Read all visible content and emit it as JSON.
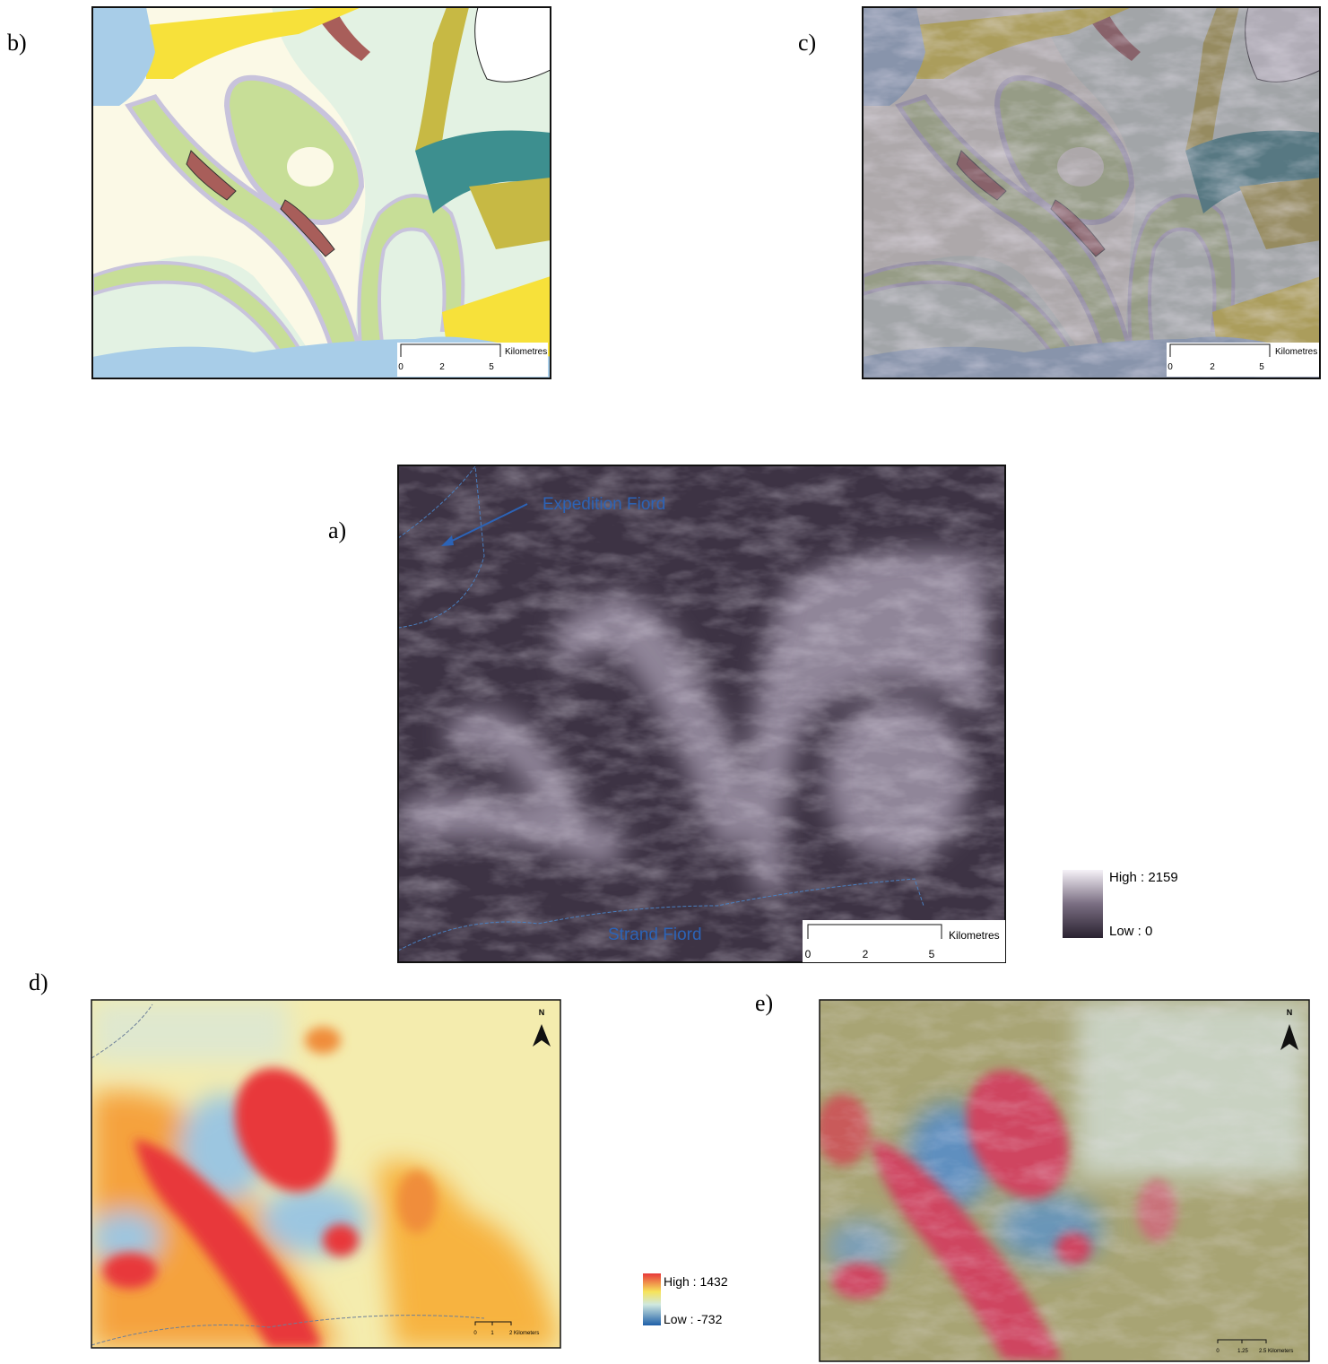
{
  "panels": {
    "b": {
      "label": "b)",
      "scale": {
        "ticks": [
          "0",
          "2",
          "5"
        ],
        "unit": "Kilometres"
      }
    },
    "c": {
      "label": "c)",
      "scale": {
        "ticks": [
          "0",
          "2",
          "5"
        ],
        "unit": "Kilometres"
      }
    },
    "a": {
      "label": "a)",
      "annotations": [
        "Expedition Fiord",
        "Strand Fiord"
      ],
      "scale": {
        "ticks": [
          "0",
          "2",
          "5"
        ],
        "unit": "Kilometres"
      },
      "legend": {
        "high": "High : 2159",
        "low": "Low : 0"
      }
    },
    "d": {
      "label": "d)",
      "north": "N",
      "scale": {
        "ticks": [
          "0",
          "1"
        ],
        "unit": "2 Kilometers"
      },
      "legend": {
        "high": "High : 1432",
        "low": "Low : -732"
      }
    },
    "e": {
      "label": "e)",
      "north": "N",
      "scale": {
        "ticks": [
          "0",
          "1.25"
        ],
        "unit": "2.5 Kilometers"
      }
    }
  }
}
